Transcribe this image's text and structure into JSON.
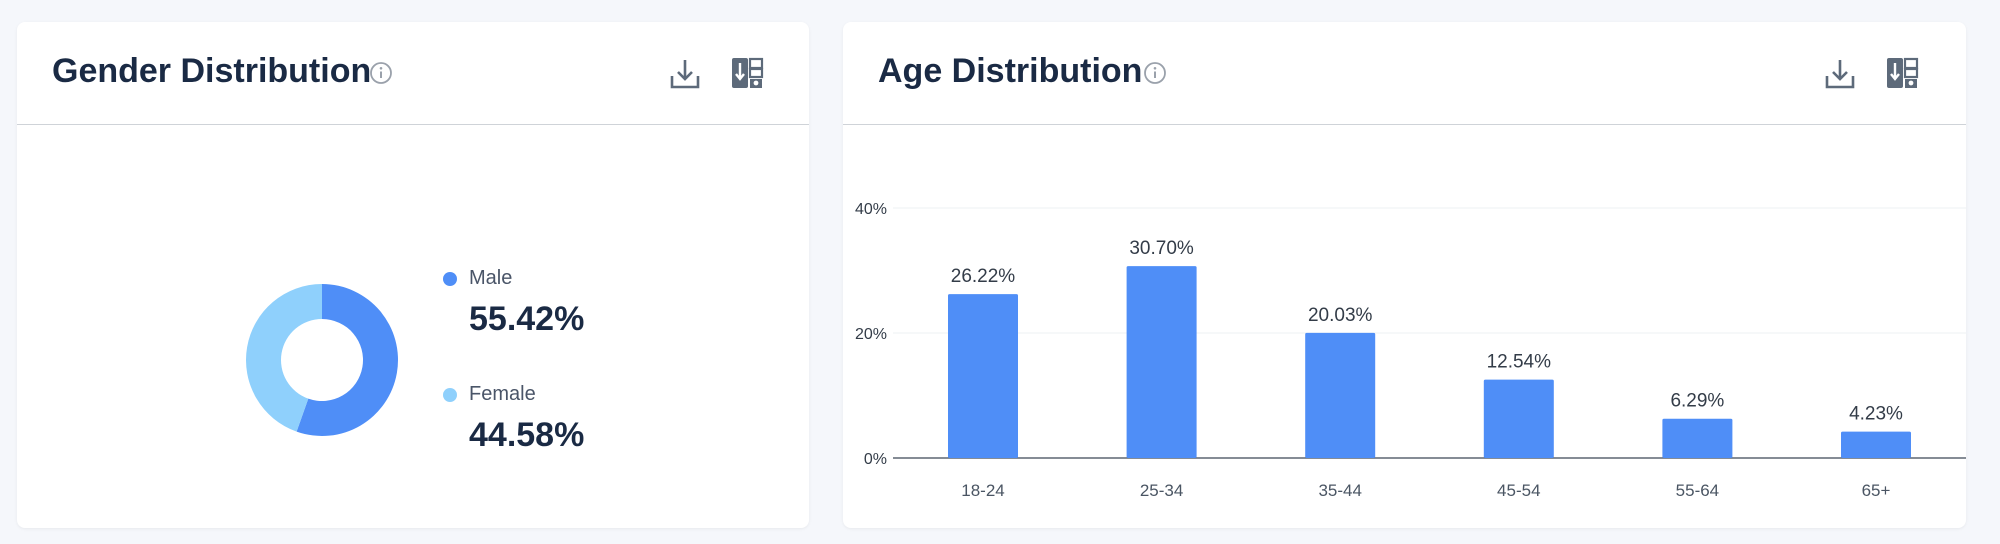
{
  "gender_card": {
    "title": "Gender Distribution",
    "icons": [
      "info-icon",
      "download-icon",
      "export-table-icon"
    ]
  },
  "age_card": {
    "title": "Age Distribution",
    "icons": [
      "info-icon",
      "download-icon",
      "export-table-icon"
    ]
  },
  "colors": {
    "male": "#4f8ef7",
    "female": "#8fd0fc",
    "bar": "#4f8ef7",
    "title": "#1a2a44"
  },
  "chart_data": [
    {
      "type": "pie",
      "variant": "donut",
      "title": "Gender Distribution",
      "categories": [
        "Male",
        "Female"
      ],
      "values": [
        55.42,
        44.58
      ],
      "value_labels": [
        "55.42%",
        "44.58%"
      ],
      "legend_placement": "right"
    },
    {
      "type": "bar",
      "title": "Age Distribution",
      "categories": [
        "18-24",
        "25-34",
        "35-44",
        "45-54",
        "55-64",
        "65+"
      ],
      "values": [
        26.22,
        30.7,
        20.03,
        12.54,
        6.29,
        4.23
      ],
      "value_labels": [
        "26.22%",
        "30.70%",
        "20.03%",
        "12.54%",
        "6.29%",
        "4.23%"
      ],
      "ylim": [
        0,
        40
      ],
      "yticks": [
        0,
        20,
        40
      ],
      "ytick_labels": [
        "0%",
        "20%",
        "40%"
      ],
      "grid": true
    }
  ]
}
